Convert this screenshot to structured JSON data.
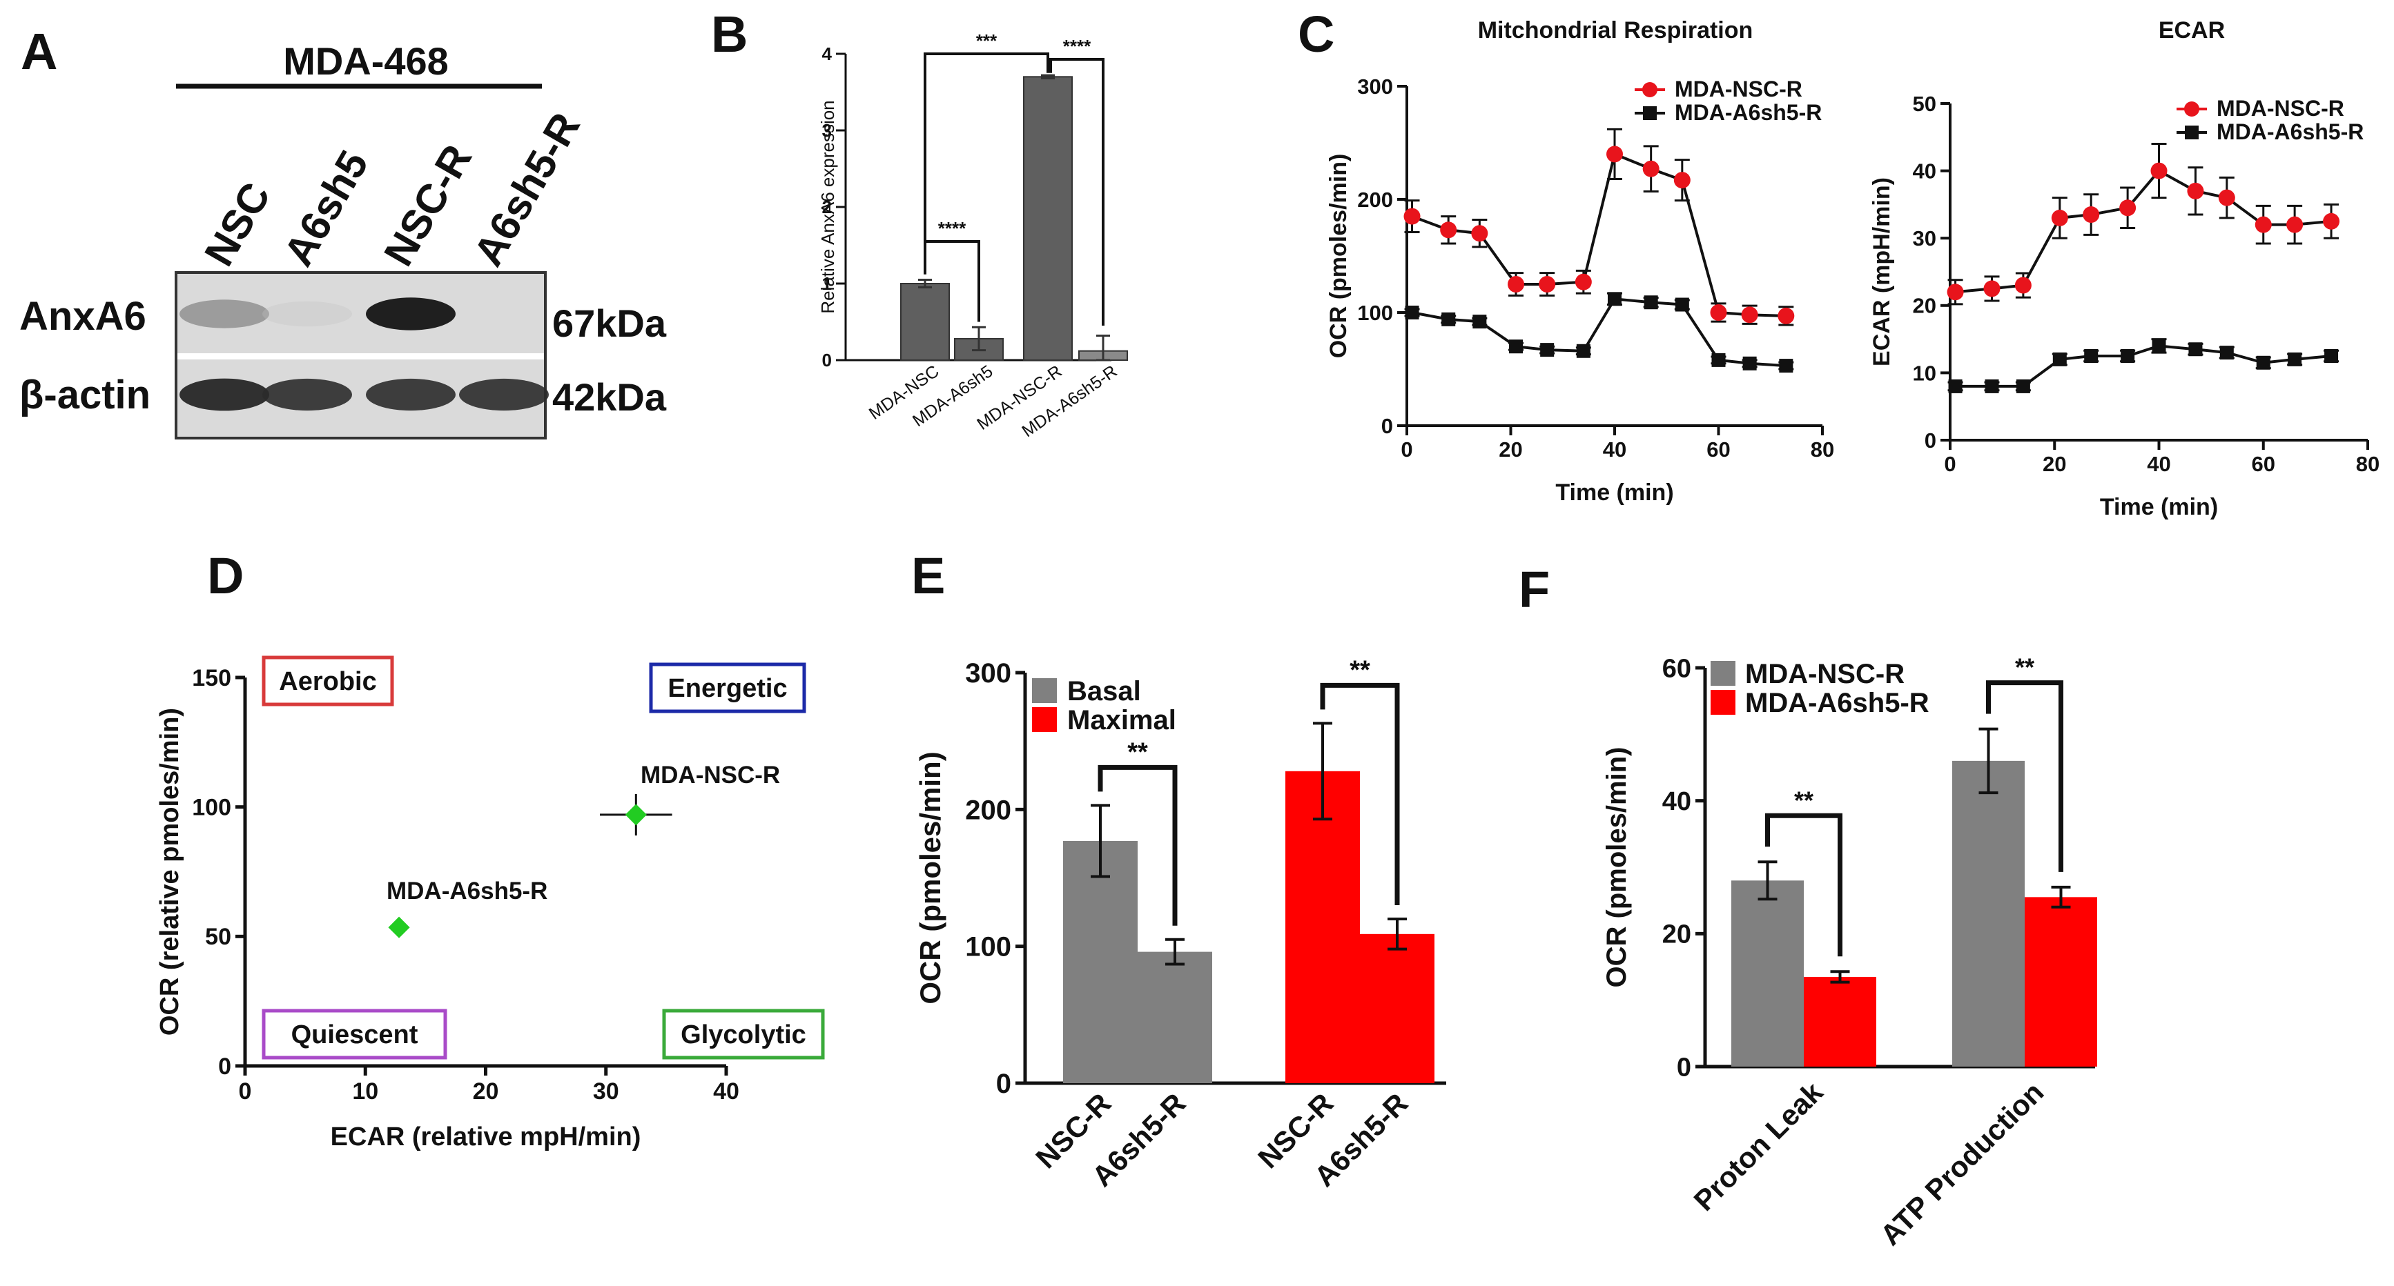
{
  "panel_letters": [
    "A",
    "B",
    "C",
    "D",
    "E",
    "F"
  ],
  "colors": {
    "gray": "#808080",
    "darkgray": "#5f5f5f",
    "red": "#ff0000",
    "black": "#111111",
    "green": "#22cc22"
  },
  "blot": {
    "cell_line": "MDA-468",
    "lanes": [
      "NSC",
      "A6sh5",
      "NSC-R",
      "A6sh5-R"
    ],
    "rows": [
      {
        "protein": "AnxA6",
        "size": "67kDa",
        "band_intensity": [
          0.45,
          0.03,
          0.95,
          0.0
        ]
      },
      {
        "protein": "β-actin",
        "size": "42kDa",
        "band_intensity": [
          0.9,
          0.85,
          0.85,
          0.85
        ]
      }
    ]
  },
  "chart_data": [
    {
      "id": "B",
      "type": "bar",
      "title": "",
      "xlabel": "",
      "ylabel": "Relative AnxA6 expression",
      "ylim": [
        0,
        4
      ],
      "yticks": [
        0,
        1,
        2,
        3,
        4
      ],
      "categories": [
        "MDA-NSC",
        "MDA-A6sh5",
        "MDA-NSC-R",
        "MDA-A6sh5-R"
      ],
      "values": [
        1.0,
        0.28,
        3.7,
        0.12
      ],
      "errors": [
        0.05,
        0.15,
        0.02,
        0.2
      ],
      "significance": [
        {
          "pair": [
            0,
            2
          ],
          "label": "***"
        },
        {
          "pair": [
            2,
            3
          ],
          "label": "****"
        },
        {
          "pair": [
            0,
            1
          ],
          "label": "****"
        }
      ]
    },
    {
      "id": "C1",
      "type": "line",
      "title": "Mitchondrial Respiration",
      "xlabel": "Time (min)",
      "ylabel": "OCR (pmoles/min)",
      "xlim": [
        0,
        80
      ],
      "ylim": [
        0,
        300
      ],
      "xticks": [
        0,
        20,
        40,
        60,
        80
      ],
      "yticks": [
        0,
        100,
        200,
        300
      ],
      "legend": "top-right",
      "x": [
        1,
        8,
        14,
        21,
        27,
        34,
        40,
        47,
        53,
        60,
        66,
        73
      ],
      "series": [
        {
          "name": "MDA-NSC-R",
          "color": "#e8141c",
          "marker": "circle",
          "values": [
            185,
            173,
            170,
            125,
            125,
            127,
            240,
            227,
            217,
            100,
            98,
            97
          ],
          "errors": [
            14,
            12,
            12,
            10,
            10,
            10,
            22,
            20,
            18,
            8,
            8,
            8
          ]
        },
        {
          "name": "MDA-A6sh5-R",
          "color": "#111111",
          "marker": "square",
          "values": [
            100,
            94,
            92,
            70,
            67,
            66,
            112,
            109,
            107,
            58,
            55,
            53
          ],
          "errors": [
            3,
            3,
            3,
            3,
            3,
            3,
            5,
            4,
            4,
            3,
            3,
            3
          ]
        }
      ]
    },
    {
      "id": "C2",
      "type": "line",
      "title": "ECAR",
      "xlabel": "Time (min)",
      "ylabel": "ECAR (mpH/min)",
      "xlim": [
        0,
        80
      ],
      "ylim": [
        0,
        50
      ],
      "xticks": [
        0,
        20,
        40,
        60,
        80
      ],
      "yticks": [
        0,
        10,
        20,
        30,
        40,
        50
      ],
      "legend": "top-right",
      "x": [
        1,
        8,
        14,
        21,
        27,
        34,
        40,
        47,
        53,
        60,
        66,
        73
      ],
      "series": [
        {
          "name": "MDA-NSC-R",
          "color": "#e8141c",
          "marker": "circle",
          "values": [
            22,
            22.5,
            23,
            33,
            33.5,
            34.5,
            40,
            37,
            36,
            32,
            32,
            32.5
          ],
          "errors": [
            1.8,
            1.8,
            1.8,
            3,
            3,
            3,
            4,
            3.5,
            3,
            2.8,
            2.8,
            2.5
          ]
        },
        {
          "name": "MDA-A6sh5-R",
          "color": "#111111",
          "marker": "square",
          "values": [
            8,
            8,
            8,
            12,
            12.5,
            12.5,
            14,
            13.5,
            13,
            11.5,
            12,
            12.5
          ],
          "errors": [
            0.6,
            0.6,
            0.6,
            0.8,
            0.8,
            0.8,
            1,
            0.8,
            0.8,
            0.8,
            0.8,
            0.8
          ]
        }
      ]
    },
    {
      "id": "D",
      "type": "scatter",
      "title": "",
      "xlabel": "ECAR (relative mpH/min)",
      "ylabel": "OCR (relative pmoles/min)",
      "xlim": [
        0,
        40
      ],
      "ylim": [
        0,
        150
      ],
      "xticks": [
        0,
        10,
        20,
        30,
        40
      ],
      "yticks": [
        0,
        50,
        100,
        150
      ],
      "quadrants": [
        {
          "label": "Aerobic",
          "color": "#d83a3a",
          "position": "top-left"
        },
        {
          "label": "Energetic",
          "color": "#1c2aa8",
          "position": "top-right"
        },
        {
          "label": "Quiescent",
          "color": "#a94bc8",
          "position": "bottom-left"
        },
        {
          "label": "Glycolytic",
          "color": "#3aaa3a",
          "position": "bottom-right"
        }
      ],
      "points": [
        {
          "name": "MDA-NSC-R",
          "x": 32.5,
          "y": 97,
          "xerr": 3,
          "yerr": 8
        },
        {
          "name": "MDA-A6sh5-R",
          "x": 12.8,
          "y": 53.5,
          "xerr": 0.5,
          "yerr": 2
        }
      ]
    },
    {
      "id": "E",
      "type": "bar",
      "title": "",
      "xlabel": "",
      "ylabel": "OCR (pmoles/min)",
      "ylim": [
        0,
        300
      ],
      "yticks": [
        0,
        100,
        200,
        300
      ],
      "legend": "top-left",
      "series": [
        {
          "name": "Basal",
          "color": "#808080"
        },
        {
          "name": "Maximal",
          "color": "#ff0000"
        }
      ],
      "groups": [
        {
          "series": "Basal",
          "categories": [
            "NSC-R",
            "A6sh5-R"
          ],
          "values": [
            177,
            96
          ],
          "errors": [
            26,
            9
          ],
          "significance": "**"
        },
        {
          "series": "Maximal",
          "categories": [
            "NSC-R",
            "A6sh5-R"
          ],
          "values": [
            228,
            109
          ],
          "errors": [
            35,
            11
          ],
          "significance": "**"
        }
      ]
    },
    {
      "id": "F",
      "type": "bar",
      "title": "",
      "xlabel": "",
      "ylabel": "OCR (pmoles/min)",
      "ylim": [
        0,
        60
      ],
      "yticks": [
        0,
        20,
        40,
        60
      ],
      "legend": "top-left",
      "categories": [
        "Proton Leak",
        "ATP Production"
      ],
      "series": [
        {
          "name": "MDA-NSC-R",
          "color": "#808080",
          "values": [
            28,
            46
          ],
          "errors": [
            2.8,
            4.8
          ]
        },
        {
          "name": "MDA-A6sh5-R",
          "color": "#ff0000",
          "values": [
            13.5,
            25.5
          ],
          "errors": [
            0.8,
            1.5
          ]
        }
      ],
      "significance": [
        "**",
        "**"
      ]
    }
  ]
}
